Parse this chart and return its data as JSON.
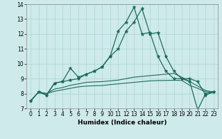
{
  "xlabel": "Humidex (Indice chaleur)",
  "xlim": [
    -0.5,
    23.5
  ],
  "ylim": [
    7,
    14
  ],
  "yticks": [
    7,
    8,
    9,
    10,
    11,
    12,
    13,
    14
  ],
  "xticks": [
    0,
    1,
    2,
    3,
    4,
    5,
    6,
    7,
    8,
    9,
    10,
    11,
    12,
    13,
    14,
    15,
    16,
    17,
    18,
    19,
    20,
    21,
    22,
    23
  ],
  "background_color": "#ceeaea",
  "grid_color": "#aed4d4",
  "line_color": "#1a6b5a",
  "series_with_markers": [
    [
      7.5,
      8.1,
      7.9,
      8.7,
      8.8,
      9.7,
      9.1,
      9.3,
      9.5,
      9.8,
      10.5,
      12.2,
      12.8,
      13.8,
      12.0,
      12.1,
      10.5,
      9.5,
      9.0,
      9.0,
      8.8,
      6.9,
      8.0,
      8.1
    ],
    [
      7.5,
      8.1,
      7.9,
      8.7,
      8.8,
      8.9,
      9.0,
      9.3,
      9.5,
      9.8,
      10.5,
      11.0,
      12.2,
      12.8,
      13.7,
      12.0,
      12.1,
      10.5,
      9.5,
      9.0,
      9.0,
      8.8,
      7.9,
      8.1
    ]
  ],
  "series_plain": [
    [
      7.5,
      8.1,
      8.0,
      8.3,
      8.4,
      8.55,
      8.65,
      8.75,
      8.78,
      8.8,
      8.85,
      8.9,
      9.0,
      9.1,
      9.15,
      9.2,
      9.25,
      9.3,
      9.35,
      9.1,
      8.8,
      8.5,
      8.2,
      8.1
    ],
    [
      7.5,
      8.1,
      8.0,
      8.15,
      8.25,
      8.35,
      8.45,
      8.5,
      8.52,
      8.54,
      8.6,
      8.65,
      8.7,
      8.75,
      8.8,
      8.85,
      8.87,
      8.88,
      8.89,
      8.88,
      8.55,
      8.35,
      8.12,
      8.1
    ]
  ]
}
